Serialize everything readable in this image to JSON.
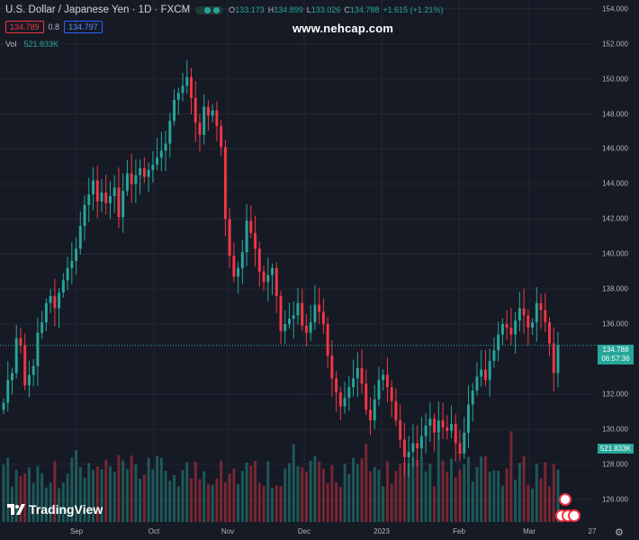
{
  "header": {
    "symbol": "U.S. Dollar / Japanese Yen · 1D · FXCM",
    "ohlc": {
      "o_label": "O",
      "o": "133.173",
      "h_label": "H",
      "h": "134.899",
      "l_label": "L",
      "l": "133.026",
      "c_label": "C",
      "c": "134.788",
      "change": "+1.615 (+1.21%)"
    },
    "sell_price": "134.789",
    "spread": "0.8",
    "buy_price": "134.797",
    "vol_label": "Vol",
    "vol_value": "521.833K"
  },
  "watermark": "www.nehcap.com",
  "logo": "TradingView",
  "price_axis": {
    "ticks": [
      "154.000",
      "152.000",
      "150.000",
      "148.000",
      "146.000",
      "144.000",
      "142.000",
      "140.000",
      "138.000",
      "136.000",
      "132.000",
      "130.000",
      "128.000",
      "126.000"
    ],
    "tick_values": [
      154,
      152,
      150,
      148,
      146,
      144,
      142,
      140,
      138,
      136,
      132,
      130,
      128,
      126
    ],
    "current_price": "134.788",
    "countdown": "06:57:36",
    "volume_last": "521.833K"
  },
  "time_axis": [
    "Sep",
    "Oct",
    "Nov",
    "Dec",
    "2023",
    "Feb",
    "Mar",
    "27"
  ],
  "colors": {
    "up": "#26a69a",
    "down": "#f23645",
    "bg": "#161a25",
    "grid": "#232732"
  },
  "chart_data": {
    "type": "candlestick",
    "title": "U.S. Dollar / Japanese Yen · 1D · FXCM",
    "ylim": [
      124.7,
      154.5
    ],
    "close_series": [
      131.5,
      132.8,
      133.2,
      135.2,
      134.8,
      132.5,
      133.1,
      133.6,
      135.5,
      136.1,
      137.2,
      137.6,
      136.9,
      137.8,
      138.5,
      139.2,
      139.6,
      140.3,
      141.6,
      142.8,
      143.4,
      144.2,
      143.0,
      143.5,
      142.9,
      143.3,
      143.8,
      142.1,
      143.6,
      144.6,
      144.0,
      144.5,
      144.9,
      144.4,
      144.8,
      145.1,
      145.5,
      145.9,
      146.3,
      147.6,
      148.8,
      149.2,
      149.6,
      150.1,
      148.9,
      147.5,
      146.8,
      148.4,
      147.9,
      148.2,
      147.3,
      146.1,
      142.0,
      139.9,
      138.7,
      139.2,
      140.1,
      141.9,
      141.2,
      140.3,
      139.0,
      138.4,
      138.8,
      139.2,
      137.6,
      135.6,
      136.0,
      136.3,
      136.5,
      137.2,
      135.9,
      135.5,
      136.1,
      137.1,
      136.7,
      136.0,
      134.2,
      132.9,
      132.1,
      131.3,
      131.8,
      132.4,
      132.9,
      133.5,
      132.6,
      131.1,
      130.5,
      131.7,
      132.8,
      133.1,
      132.4,
      131.6,
      130.5,
      129.4,
      128.4,
      128.7,
      129.2,
      128.9,
      129.6,
      130.2,
      130.6,
      129.8,
      130.5,
      130.1,
      129.9,
      130.3,
      129.2,
      128.6,
      129.8,
      131.4,
      132.2,
      133.0,
      133.4,
      132.8,
      133.9,
      134.5,
      135.4,
      136.0,
      135.8,
      135.4,
      136.2,
      136.9,
      136.5,
      135.8,
      136.1,
      137.2,
      136.8,
      136.1,
      134.9,
      133.2,
      134.788
    ],
    "volume_max": 1
  }
}
